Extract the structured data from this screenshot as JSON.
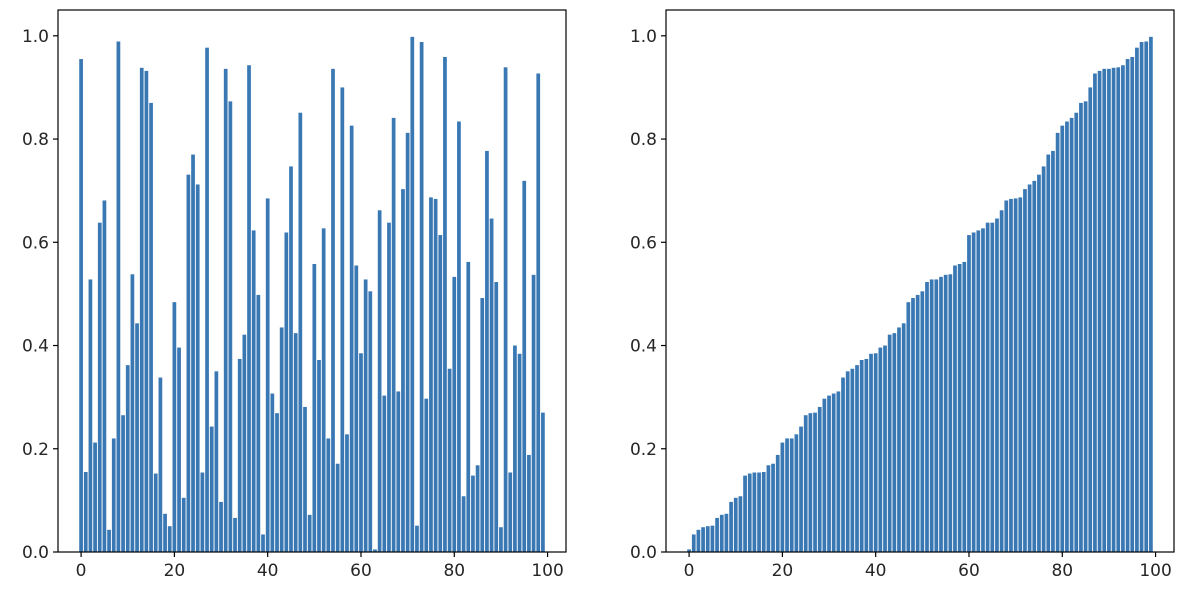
{
  "chart_data": [
    {
      "type": "bar",
      "title": "",
      "xlabel": "",
      "ylabel": "",
      "color": "#3a78b4",
      "xlim": [
        -4.95,
        103.95
      ],
      "ylim": [
        0,
        1.05
      ],
      "xticks": [
        0,
        20,
        40,
        60,
        80,
        100
      ],
      "yticks": [
        0.0,
        0.2,
        0.4,
        0.6,
        0.8,
        1.0
      ],
      "xtick_labels": [
        "0",
        "20",
        "40",
        "60",
        "80",
        "100"
      ],
      "ytick_labels": [
        "0.0",
        "0.2",
        "0.4",
        "0.6",
        "0.8",
        "1.0"
      ],
      "grid": false,
      "x": [
        0,
        1,
        2,
        3,
        4,
        5,
        6,
        7,
        8,
        9,
        10,
        11,
        12,
        13,
        14,
        15,
        16,
        17,
        18,
        19,
        20,
        21,
        22,
        23,
        24,
        25,
        26,
        27,
        28,
        29,
        30,
        31,
        32,
        33,
        34,
        35,
        36,
        37,
        38,
        39,
        40,
        41,
        42,
        43,
        44,
        45,
        46,
        47,
        48,
        49,
        50,
        51,
        52,
        53,
        54,
        55,
        56,
        57,
        58,
        59,
        60,
        61,
        62,
        63,
        64,
        65,
        66,
        67,
        68,
        69,
        70,
        71,
        72,
        73,
        74,
        75,
        76,
        77,
        78,
        79,
        80,
        81,
        82,
        83,
        84,
        85,
        86,
        87,
        88,
        89,
        90,
        91,
        92,
        93,
        94,
        95,
        96,
        97,
        98,
        99
      ],
      "values": [
        0.955,
        0.155,
        0.528,
        0.212,
        0.638,
        0.681,
        0.043,
        0.22,
        0.989,
        0.265,
        0.362,
        0.538,
        0.443,
        0.938,
        0.932,
        0.87,
        0.152,
        0.338,
        0.074,
        0.05,
        0.484,
        0.396,
        0.105,
        0.731,
        0.77,
        0.712,
        0.154,
        0.977,
        0.243,
        0.35,
        0.097,
        0.936,
        0.873,
        0.066,
        0.374,
        0.421,
        0.943,
        0.623,
        0.498,
        0.034,
        0.685,
        0.307,
        0.269,
        0.435,
        0.619,
        0.747,
        0.424,
        0.851,
        0.281,
        0.072,
        0.558,
        0.372,
        0.627,
        0.22,
        0.936,
        0.171,
        0.9,
        0.228,
        0.826,
        0.555,
        0.385,
        0.528,
        0.505,
        0.005,
        0.662,
        0.303,
        0.638,
        0.841,
        0.311,
        0.703,
        0.812,
        0.998,
        0.051,
        0.988,
        0.297,
        0.687,
        0.684,
        0.614,
        0.959,
        0.355,
        0.533,
        0.834,
        0.108,
        0.562,
        0.148,
        0.168,
        0.492,
        0.777,
        0.646,
        0.523,
        0.048,
        0.939,
        0.154,
        0.4,
        0.384,
        0.719,
        0.188,
        0.537,
        0.927,
        0.27
      ]
    },
    {
      "type": "bar",
      "title": "",
      "xlabel": "",
      "ylabel": "",
      "color": "#3a78b4",
      "xlim": [
        -4.95,
        103.95
      ],
      "ylim": [
        0,
        1.05
      ],
      "xticks": [
        0,
        20,
        40,
        60,
        80,
        100
      ],
      "yticks": [
        0.0,
        0.2,
        0.4,
        0.6,
        0.8,
        1.0
      ],
      "xtick_labels": [
        "0",
        "20",
        "40",
        "60",
        "80",
        "100"
      ],
      "ytick_labels": [
        "0.0",
        "0.2",
        "0.4",
        "0.6",
        "0.8",
        "1.0"
      ],
      "grid": false,
      "x": [
        0,
        1,
        2,
        3,
        4,
        5,
        6,
        7,
        8,
        9,
        10,
        11,
        12,
        13,
        14,
        15,
        16,
        17,
        18,
        19,
        20,
        21,
        22,
        23,
        24,
        25,
        26,
        27,
        28,
        29,
        30,
        31,
        32,
        33,
        34,
        35,
        36,
        37,
        38,
        39,
        40,
        41,
        42,
        43,
        44,
        45,
        46,
        47,
        48,
        49,
        50,
        51,
        52,
        53,
        54,
        55,
        56,
        57,
        58,
        59,
        60,
        61,
        62,
        63,
        64,
        65,
        66,
        67,
        68,
        69,
        70,
        71,
        72,
        73,
        74,
        75,
        76,
        77,
        78,
        79,
        80,
        81,
        82,
        83,
        84,
        85,
        86,
        87,
        88,
        89,
        90,
        91,
        92,
        93,
        94,
        95,
        96,
        97,
        98,
        99
      ],
      "values": [
        0.005,
        0.034,
        0.043,
        0.048,
        0.05,
        0.051,
        0.066,
        0.072,
        0.074,
        0.097,
        0.105,
        0.108,
        0.148,
        0.152,
        0.154,
        0.154,
        0.155,
        0.168,
        0.171,
        0.188,
        0.212,
        0.22,
        0.22,
        0.228,
        0.243,
        0.265,
        0.269,
        0.27,
        0.281,
        0.297,
        0.303,
        0.307,
        0.311,
        0.338,
        0.35,
        0.355,
        0.362,
        0.372,
        0.374,
        0.384,
        0.385,
        0.396,
        0.4,
        0.421,
        0.424,
        0.435,
        0.443,
        0.484,
        0.492,
        0.498,
        0.505,
        0.523,
        0.528,
        0.528,
        0.533,
        0.537,
        0.538,
        0.555,
        0.558,
        0.562,
        0.614,
        0.619,
        0.623,
        0.627,
        0.638,
        0.638,
        0.646,
        0.662,
        0.681,
        0.684,
        0.685,
        0.687,
        0.703,
        0.712,
        0.719,
        0.731,
        0.747,
        0.77,
        0.777,
        0.812,
        0.826,
        0.834,
        0.841,
        0.851,
        0.87,
        0.873,
        0.9,
        0.927,
        0.932,
        0.936,
        0.936,
        0.938,
        0.939,
        0.943,
        0.955,
        0.959,
        0.977,
        0.988,
        0.989,
        0.998
      ]
    }
  ]
}
